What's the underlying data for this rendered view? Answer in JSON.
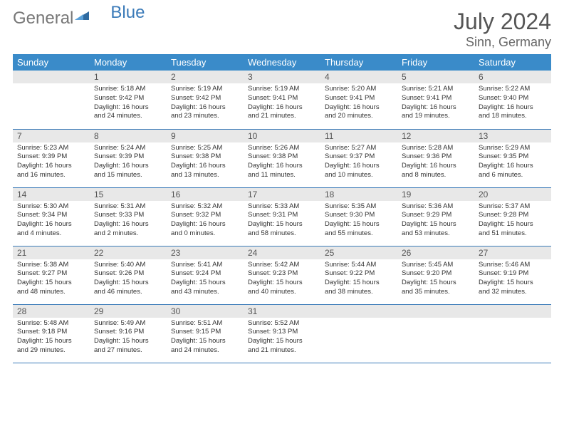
{
  "logo": {
    "part1": "General",
    "part2": "Blue"
  },
  "title": {
    "month": "July 2024",
    "location": "Sinn, Germany"
  },
  "colors": {
    "header_bg": "#3a8bc9",
    "header_fg": "#ffffff",
    "daynum_bg": "#e8e8e8",
    "border": "#3a7ab8",
    "text": "#333333",
    "title_color": "#555555"
  },
  "columns": [
    "Sunday",
    "Monday",
    "Tuesday",
    "Wednesday",
    "Thursday",
    "Friday",
    "Saturday"
  ],
  "weeks": [
    [
      {
        "day": "",
        "lines": []
      },
      {
        "day": "1",
        "lines": [
          "Sunrise: 5:18 AM",
          "Sunset: 9:42 PM",
          "Daylight: 16 hours",
          "and 24 minutes."
        ]
      },
      {
        "day": "2",
        "lines": [
          "Sunrise: 5:19 AM",
          "Sunset: 9:42 PM",
          "Daylight: 16 hours",
          "and 23 minutes."
        ]
      },
      {
        "day": "3",
        "lines": [
          "Sunrise: 5:19 AM",
          "Sunset: 9:41 PM",
          "Daylight: 16 hours",
          "and 21 minutes."
        ]
      },
      {
        "day": "4",
        "lines": [
          "Sunrise: 5:20 AM",
          "Sunset: 9:41 PM",
          "Daylight: 16 hours",
          "and 20 minutes."
        ]
      },
      {
        "day": "5",
        "lines": [
          "Sunrise: 5:21 AM",
          "Sunset: 9:41 PM",
          "Daylight: 16 hours",
          "and 19 minutes."
        ]
      },
      {
        "day": "6",
        "lines": [
          "Sunrise: 5:22 AM",
          "Sunset: 9:40 PM",
          "Daylight: 16 hours",
          "and 18 minutes."
        ]
      }
    ],
    [
      {
        "day": "7",
        "lines": [
          "Sunrise: 5:23 AM",
          "Sunset: 9:39 PM",
          "Daylight: 16 hours",
          "and 16 minutes."
        ]
      },
      {
        "day": "8",
        "lines": [
          "Sunrise: 5:24 AM",
          "Sunset: 9:39 PM",
          "Daylight: 16 hours",
          "and 15 minutes."
        ]
      },
      {
        "day": "9",
        "lines": [
          "Sunrise: 5:25 AM",
          "Sunset: 9:38 PM",
          "Daylight: 16 hours",
          "and 13 minutes."
        ]
      },
      {
        "day": "10",
        "lines": [
          "Sunrise: 5:26 AM",
          "Sunset: 9:38 PM",
          "Daylight: 16 hours",
          "and 11 minutes."
        ]
      },
      {
        "day": "11",
        "lines": [
          "Sunrise: 5:27 AM",
          "Sunset: 9:37 PM",
          "Daylight: 16 hours",
          "and 10 minutes."
        ]
      },
      {
        "day": "12",
        "lines": [
          "Sunrise: 5:28 AM",
          "Sunset: 9:36 PM",
          "Daylight: 16 hours",
          "and 8 minutes."
        ]
      },
      {
        "day": "13",
        "lines": [
          "Sunrise: 5:29 AM",
          "Sunset: 9:35 PM",
          "Daylight: 16 hours",
          "and 6 minutes."
        ]
      }
    ],
    [
      {
        "day": "14",
        "lines": [
          "Sunrise: 5:30 AM",
          "Sunset: 9:34 PM",
          "Daylight: 16 hours",
          "and 4 minutes."
        ]
      },
      {
        "day": "15",
        "lines": [
          "Sunrise: 5:31 AM",
          "Sunset: 9:33 PM",
          "Daylight: 16 hours",
          "and 2 minutes."
        ]
      },
      {
        "day": "16",
        "lines": [
          "Sunrise: 5:32 AM",
          "Sunset: 9:32 PM",
          "Daylight: 16 hours",
          "and 0 minutes."
        ]
      },
      {
        "day": "17",
        "lines": [
          "Sunrise: 5:33 AM",
          "Sunset: 9:31 PM",
          "Daylight: 15 hours",
          "and 58 minutes."
        ]
      },
      {
        "day": "18",
        "lines": [
          "Sunrise: 5:35 AM",
          "Sunset: 9:30 PM",
          "Daylight: 15 hours",
          "and 55 minutes."
        ]
      },
      {
        "day": "19",
        "lines": [
          "Sunrise: 5:36 AM",
          "Sunset: 9:29 PM",
          "Daylight: 15 hours",
          "and 53 minutes."
        ]
      },
      {
        "day": "20",
        "lines": [
          "Sunrise: 5:37 AM",
          "Sunset: 9:28 PM",
          "Daylight: 15 hours",
          "and 51 minutes."
        ]
      }
    ],
    [
      {
        "day": "21",
        "lines": [
          "Sunrise: 5:38 AM",
          "Sunset: 9:27 PM",
          "Daylight: 15 hours",
          "and 48 minutes."
        ]
      },
      {
        "day": "22",
        "lines": [
          "Sunrise: 5:40 AM",
          "Sunset: 9:26 PM",
          "Daylight: 15 hours",
          "and 46 minutes."
        ]
      },
      {
        "day": "23",
        "lines": [
          "Sunrise: 5:41 AM",
          "Sunset: 9:24 PM",
          "Daylight: 15 hours",
          "and 43 minutes."
        ]
      },
      {
        "day": "24",
        "lines": [
          "Sunrise: 5:42 AM",
          "Sunset: 9:23 PM",
          "Daylight: 15 hours",
          "and 40 minutes."
        ]
      },
      {
        "day": "25",
        "lines": [
          "Sunrise: 5:44 AM",
          "Sunset: 9:22 PM",
          "Daylight: 15 hours",
          "and 38 minutes."
        ]
      },
      {
        "day": "26",
        "lines": [
          "Sunrise: 5:45 AM",
          "Sunset: 9:20 PM",
          "Daylight: 15 hours",
          "and 35 minutes."
        ]
      },
      {
        "day": "27",
        "lines": [
          "Sunrise: 5:46 AM",
          "Sunset: 9:19 PM",
          "Daylight: 15 hours",
          "and 32 minutes."
        ]
      }
    ],
    [
      {
        "day": "28",
        "lines": [
          "Sunrise: 5:48 AM",
          "Sunset: 9:18 PM",
          "Daylight: 15 hours",
          "and 29 minutes."
        ]
      },
      {
        "day": "29",
        "lines": [
          "Sunrise: 5:49 AM",
          "Sunset: 9:16 PM",
          "Daylight: 15 hours",
          "and 27 minutes."
        ]
      },
      {
        "day": "30",
        "lines": [
          "Sunrise: 5:51 AM",
          "Sunset: 9:15 PM",
          "Daylight: 15 hours",
          "and 24 minutes."
        ]
      },
      {
        "day": "31",
        "lines": [
          "Sunrise: 5:52 AM",
          "Sunset: 9:13 PM",
          "Daylight: 15 hours",
          "and 21 minutes."
        ]
      },
      {
        "day": "",
        "lines": []
      },
      {
        "day": "",
        "lines": []
      },
      {
        "day": "",
        "lines": []
      }
    ]
  ]
}
